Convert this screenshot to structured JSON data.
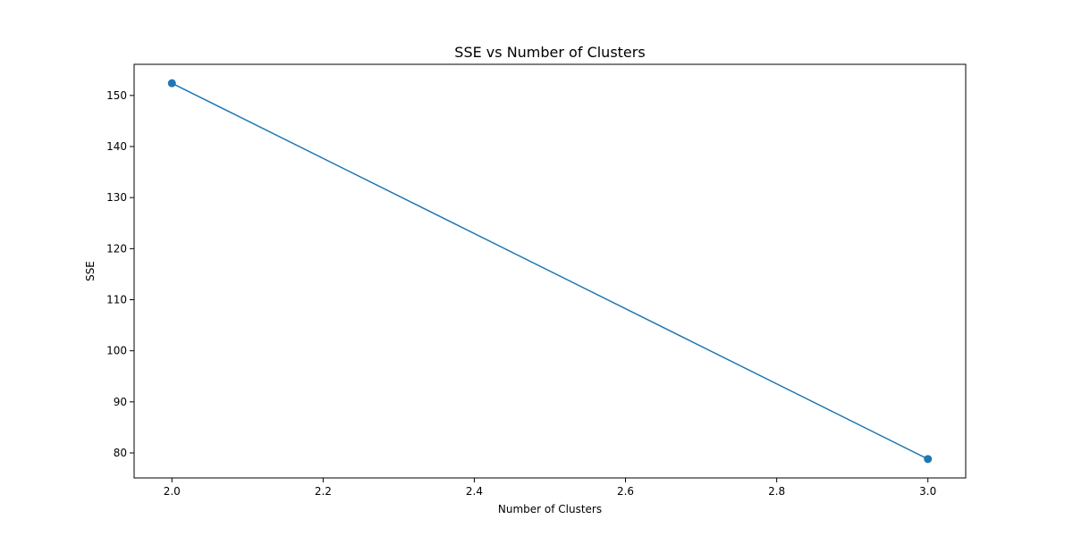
{
  "chart_data": {
    "type": "line",
    "title": "SSE vs Number of Clusters",
    "xlabel": "Number of Clusters",
    "ylabel": "SSE",
    "x": [
      2,
      3
    ],
    "series": [
      {
        "values": [
          152.4,
          78.8
        ],
        "color": "#1f77b4",
        "marker": "circle"
      }
    ],
    "xlim": [
      1.95,
      3.05
    ],
    "ylim": [
      75.1,
      156.1
    ],
    "xticks": [
      2.0,
      2.2,
      2.4,
      2.6,
      2.8,
      3.0
    ],
    "xtick_labels": [
      "2.0",
      "2.2",
      "2.4",
      "2.6",
      "2.8",
      "3.0"
    ],
    "yticks": [
      80,
      90,
      100,
      110,
      120,
      130,
      140,
      150
    ],
    "ytick_labels": [
      "80",
      "90",
      "100",
      "110",
      "120",
      "130",
      "140",
      "150"
    ],
    "grid": false,
    "legend": null
  }
}
